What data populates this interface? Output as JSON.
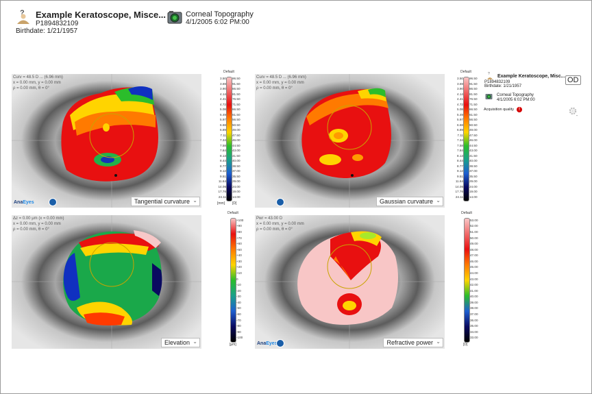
{
  "header": {
    "patient_name": "Example  Keratoscope, Misce...",
    "patient_id": "P1894832109",
    "birthdate": "Birthdate: 1/21/1957",
    "exam_type": "Corneal Topography",
    "exam_datetime": "4/1/2005 6:02 PM:00"
  },
  "brand": {
    "prefix": "Ana",
    "suffix": "Eyes"
  },
  "maps": [
    {
      "title": "Tangential curvature",
      "info": [
        "Curv = 48.5 D ... (6.96 mm)",
        "x = 0.00 mm, y = 0.00 mm",
        "ρ = 0.00 mm, θ = 0°"
      ]
    },
    {
      "title": "Gaussian curvature",
      "info": [
        "Curv = 48.5 D ... (6.96 mm)",
        "x = 0.00 mm, y = 0.00 mm",
        "ρ = 0.00 mm, θ = 0°"
      ]
    },
    {
      "title": "Elevation",
      "info": [
        "Δz = 0.00 μm (x = 0.00 mm)",
        "x = 0.00 mm, y = 0.00 mm",
        "ρ = 0.00 mm, θ = 0°"
      ]
    },
    {
      "title": "Refractive power",
      "info": [
        "Pwr = 43.00 D",
        "x = 0.00 mm, y = 0.00 mm",
        "ρ = 0.00 mm, θ = 0°"
      ]
    }
  ],
  "scales": {
    "curvature": {
      "caption": "Default",
      "mm": [
        "3.50",
        "3.69",
        "3.90",
        "4.14",
        "4.41",
        "4.72",
        "5.08",
        "5.49",
        "5.97",
        "6.68",
        "6.89",
        "7.11",
        "7.34",
        "7.58",
        "7.84",
        "8.13",
        "8.44",
        "8.77",
        "9.12",
        "9.51",
        "11.64",
        "14.06",
        "17.76",
        "24.11"
      ],
      "d": [
        "96.50",
        "91.50",
        "86.50",
        "81.50",
        "76.50",
        "71.50",
        "66.50",
        "61.50",
        "56.50",
        "50.50",
        "49.00",
        "47.50",
        "46.00",
        "44.50",
        "43.00",
        "41.50",
        "40.00",
        "38.50",
        "37.00",
        "35.50",
        "29.00",
        "24.00",
        "19.00",
        "14.00"
      ],
      "unit_mm": "[mm]",
      "unit_d": "[D]"
    },
    "elevation": {
      "caption": "Default",
      "values": [
        "+100",
        "+90",
        "+80",
        "+70",
        "+60",
        "+50",
        "+40",
        "+30",
        "+20",
        "+10",
        "0",
        "-10",
        "-20",
        "-30",
        "-40",
        "-50",
        "-60",
        "-70",
        "-80",
        "-90",
        "-100"
      ],
      "unit": "[μm]"
    },
    "refractive": {
      "caption": "Default",
      "values": [
        "53.00",
        "52.00",
        "51.00",
        "50.00",
        "49.00",
        "48.00",
        "47.00",
        "46.00",
        "45.00",
        "44.00",
        "43.00",
        "42.00",
        "41.00",
        "40.00",
        "39.00",
        "38.00",
        "37.00",
        "36.00",
        "35.00",
        "34.00",
        "33.00"
      ],
      "unit": "[D]"
    }
  },
  "right_panel": {
    "patient_name": "Example Keratoscope, Misc...",
    "patient_id": "P1894832109",
    "birthdate": "Birthdate: 1/21/1957",
    "eye": "OD",
    "exam_type": "Corneal Topography",
    "exam_datetime": "4/1/2005 6:02 PM:00",
    "acquisition_label": "Acquisition quality",
    "warning_glyph": "!"
  }
}
